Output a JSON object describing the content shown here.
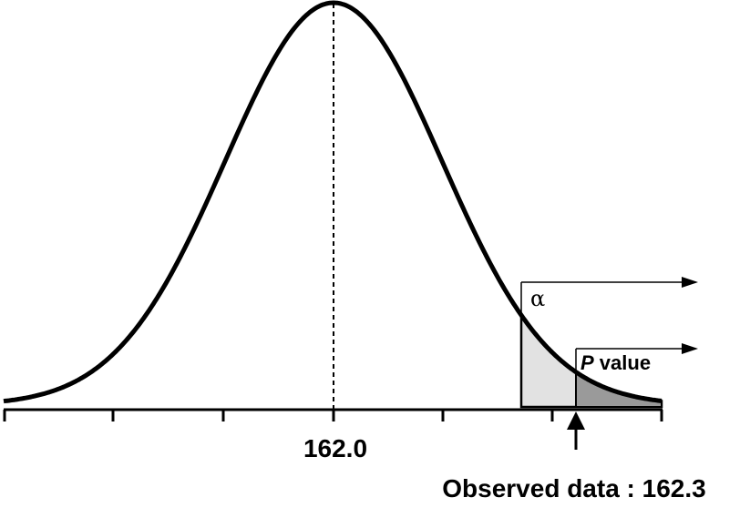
{
  "labels": {
    "alpha": "α",
    "p_value_italic": "P",
    "p_value_rest": " value",
    "mean": "162.0",
    "observed": "Observed data : 162.3"
  },
  "colors": {
    "curve": "#000000",
    "alpha_region": "#e2e2e2",
    "p_value_region": "#9a9a9a",
    "background": "#ffffff"
  }
}
